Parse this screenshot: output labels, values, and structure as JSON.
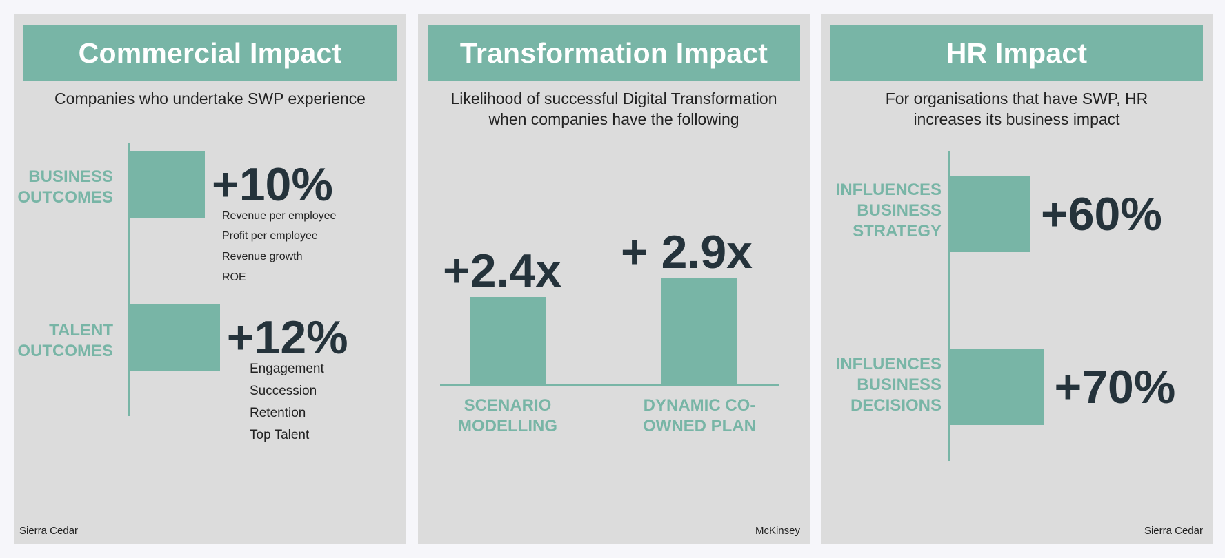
{
  "colors": {
    "accent": "#78b5a6",
    "panel": "#dcdcdc",
    "value_text": "#25333b"
  },
  "panels": [
    {
      "title": "Commercial Impact",
      "subtitle": [
        "Companies who undertake SWP experience"
      ],
      "source": "Sierra Cedar"
    },
    {
      "title": "Transformation Impact",
      "subtitle": [
        "Likelihood of successful Digital Transformation",
        "when companies have the following"
      ],
      "source": "McKinsey"
    },
    {
      "title": "HR Impact",
      "subtitle": [
        "For organisations that have SWP, HR",
        "increases its business impact"
      ],
      "source": "Sierra Cedar"
    }
  ],
  "chart_data": [
    {
      "type": "bar",
      "orientation": "horizontal",
      "title": "Commercial Impact",
      "categories": [
        [
          "BUSINESS",
          "OUTCOMES"
        ],
        [
          "TALENT",
          "OUTCOMES"
        ]
      ],
      "values": [
        10,
        12
      ],
      "value_labels": [
        "+10%",
        "+12%"
      ],
      "details": [
        [
          "Revenue per employee",
          "Profit per employee",
          "Revenue growth",
          "ROE"
        ],
        [
          "Engagement",
          "Succession",
          "Retention",
          "Top Talent"
        ]
      ]
    },
    {
      "type": "bar",
      "orientation": "vertical",
      "title": "Transformation Impact",
      "categories": [
        [
          "SCENARIO",
          "MODELLING"
        ],
        [
          "DYNAMIC CO-",
          "OWNED PLAN"
        ]
      ],
      "values": [
        2.4,
        2.9
      ],
      "value_labels": [
        "+2.4x",
        "+ 2.9x"
      ]
    },
    {
      "type": "bar",
      "orientation": "horizontal",
      "title": "HR Impact",
      "categories": [
        [
          "INFLUENCES",
          "BUSINESS",
          "STRATEGY"
        ],
        [
          "INFLUENCES",
          "BUSINESS",
          "DECISIONS"
        ]
      ],
      "values": [
        60,
        70
      ],
      "value_labels": [
        "+60%",
        "+70%"
      ]
    }
  ]
}
